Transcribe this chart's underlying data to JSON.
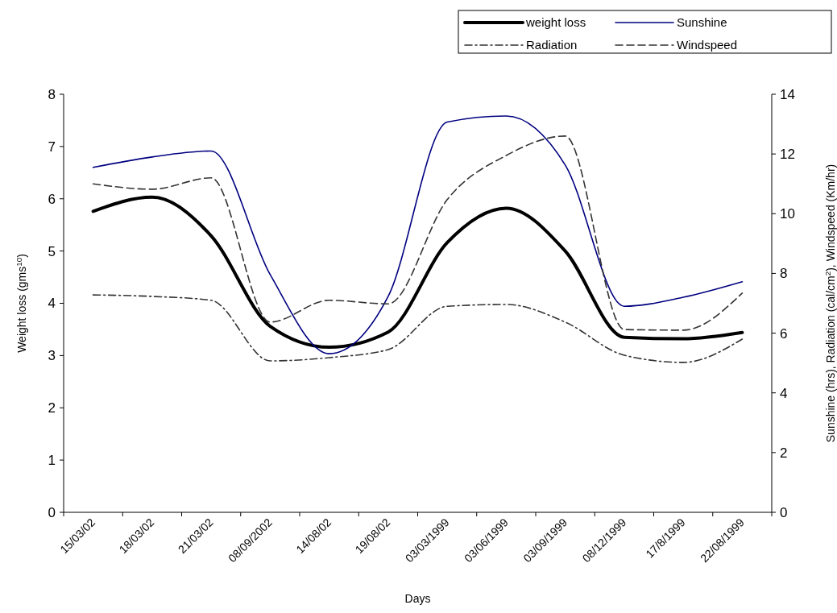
{
  "chart_data": {
    "type": "line",
    "xlabel": "Days",
    "ylabel": "Weight loss (gms$^{10}$)",
    "y2label": "Sunshine (hrs), Radiation (cal/cm$^{2}$), Windspeed (Km/hr)",
    "categories": [
      "15/03/02",
      "18/03/02",
      "21/03/02",
      "08/09/2002",
      "14/08/02",
      "19/08/02",
      "03/03/1999",
      "03/06/1999",
      "03/09/1999",
      "08/12/1999",
      "17/8/1999",
      "22/08/1999"
    ],
    "series": [
      {
        "name": "weight loss",
        "color": "#000000",
        "line_style": "solid",
        "values": [
          5.76,
          6.03,
          5.29,
          3.56,
          3.16,
          3.45,
          5.16,
          5.82,
          5.0,
          3.35,
          3.32,
          3.44
        ]
      },
      {
        "name": "Sunshine",
        "color": "#000080",
        "axis": "y2",
        "line_style": "solid",
        "values": [
          11.55,
          11.9,
          12.1,
          7.96,
          5.31,
          7.23,
          13.07,
          13.27,
          11.63,
          6.9,
          7.2,
          7.72
        ]
      },
      {
        "name": "Radiation",
        "color": "#333333",
        "axis": "y2",
        "line_style": "dashdot",
        "values": [
          7.28,
          7.23,
          7.1,
          5.07,
          5.18,
          5.45,
          6.9,
          6.96,
          6.37,
          5.26,
          5.02,
          5.8
        ]
      },
      {
        "name": "Windspeed",
        "color": "#333333",
        "axis": "y2",
        "line_style": "dashed",
        "values": [
          11.0,
          10.82,
          11.2,
          6.37,
          7.1,
          6.98,
          10.47,
          11.95,
          12.6,
          6.12,
          6.1,
          7.34
        ]
      }
    ],
    "ylim": [
      0,
      8
    ],
    "yticks": [
      0,
      1,
      2,
      3,
      4,
      5,
      6,
      7,
      8
    ],
    "y2lim": [
      0,
      14
    ],
    "y2ticks": [
      0,
      2,
      4,
      6,
      8,
      10,
      12,
      14
    ],
    "legend": "top right",
    "grid": false,
    "marker": "none"
  }
}
